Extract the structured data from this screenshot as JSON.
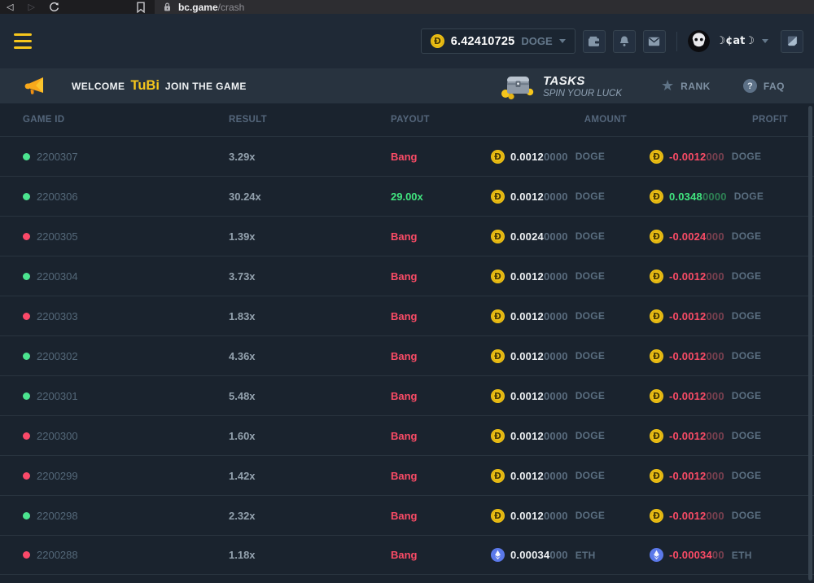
{
  "browser": {
    "url_site": "bc.game",
    "url_path": "/crash"
  },
  "header": {
    "balance": "6.42410725",
    "balance_currency": "DOGE",
    "username": "☽¢at☽"
  },
  "banner": {
    "welcome_prefix": "WELCOME",
    "welcome_name": "TuBi",
    "welcome_suffix": "JOIN THE GAME",
    "tasks_title": "TASKS",
    "tasks_subtitle": "SPIN YOUR LUCK",
    "rank_label": "RANK",
    "faq_label": "FAQ"
  },
  "icons": {
    "back_glyph": "◁",
    "forward_glyph": "▷",
    "star_glyph": "★",
    "question_glyph": "?"
  },
  "colors": {
    "accent_yellow": "#f6c61c",
    "win_green": "#41e57f",
    "loss_red": "#fb4b66",
    "doge_coin": "#eec115",
    "eth_coin": "#5b79ea",
    "green_dot": "#4be48f",
    "red_dot": "#fb4969"
  },
  "table": {
    "headers": {
      "game_id": "GAME ID",
      "result": "RESULT",
      "payout": "PAYOUT",
      "amount": "AMOUNT",
      "profit": "PROFIT"
    },
    "rows": [
      {
        "id": "2200307",
        "dot": "green",
        "result": "3.29x",
        "payout": "Bang",
        "payout_win": false,
        "coin": "doge",
        "amount_main": "0.0012",
        "amount_zeros": "0000",
        "amount_currency": "DOGE",
        "profit_main": "-0.0012",
        "profit_zeros": "000",
        "profit_currency": "DOGE",
        "profit_win": false
      },
      {
        "id": "2200306",
        "dot": "green",
        "result": "30.24x",
        "payout": "29.00x",
        "payout_win": true,
        "coin": "doge",
        "amount_main": "0.0012",
        "amount_zeros": "0000",
        "amount_currency": "DOGE",
        "profit_main": "0.0348",
        "profit_zeros": "0000",
        "profit_currency": "DOGE",
        "profit_win": true
      },
      {
        "id": "2200305",
        "dot": "red",
        "result": "1.39x",
        "payout": "Bang",
        "payout_win": false,
        "coin": "doge",
        "amount_main": "0.0024",
        "amount_zeros": "0000",
        "amount_currency": "DOGE",
        "profit_main": "-0.0024",
        "profit_zeros": "000",
        "profit_currency": "DOGE",
        "profit_win": false
      },
      {
        "id": "2200304",
        "dot": "green",
        "result": "3.73x",
        "payout": "Bang",
        "payout_win": false,
        "coin": "doge",
        "amount_main": "0.0012",
        "amount_zeros": "0000",
        "amount_currency": "DOGE",
        "profit_main": "-0.0012",
        "profit_zeros": "000",
        "profit_currency": "DOGE",
        "profit_win": false
      },
      {
        "id": "2200303",
        "dot": "red",
        "result": "1.83x",
        "payout": "Bang",
        "payout_win": false,
        "coin": "doge",
        "amount_main": "0.0012",
        "amount_zeros": "0000",
        "amount_currency": "DOGE",
        "profit_main": "-0.0012",
        "profit_zeros": "000",
        "profit_currency": "DOGE",
        "profit_win": false
      },
      {
        "id": "2200302",
        "dot": "green",
        "result": "4.36x",
        "payout": "Bang",
        "payout_win": false,
        "coin": "doge",
        "amount_main": "0.0012",
        "amount_zeros": "0000",
        "amount_currency": "DOGE",
        "profit_main": "-0.0012",
        "profit_zeros": "000",
        "profit_currency": "DOGE",
        "profit_win": false
      },
      {
        "id": "2200301",
        "dot": "green",
        "result": "5.48x",
        "payout": "Bang",
        "payout_win": false,
        "coin": "doge",
        "amount_main": "0.0012",
        "amount_zeros": "0000",
        "amount_currency": "DOGE",
        "profit_main": "-0.0012",
        "profit_zeros": "000",
        "profit_currency": "DOGE",
        "profit_win": false
      },
      {
        "id": "2200300",
        "dot": "red",
        "result": "1.60x",
        "payout": "Bang",
        "payout_win": false,
        "coin": "doge",
        "amount_main": "0.0012",
        "amount_zeros": "0000",
        "amount_currency": "DOGE",
        "profit_main": "-0.0012",
        "profit_zeros": "000",
        "profit_currency": "DOGE",
        "profit_win": false
      },
      {
        "id": "2200299",
        "dot": "red",
        "result": "1.42x",
        "payout": "Bang",
        "payout_win": false,
        "coin": "doge",
        "amount_main": "0.0012",
        "amount_zeros": "0000",
        "amount_currency": "DOGE",
        "profit_main": "-0.0012",
        "profit_zeros": "000",
        "profit_currency": "DOGE",
        "profit_win": false
      },
      {
        "id": "2200298",
        "dot": "green",
        "result": "2.32x",
        "payout": "Bang",
        "payout_win": false,
        "coin": "doge",
        "amount_main": "0.0012",
        "amount_zeros": "0000",
        "amount_currency": "DOGE",
        "profit_main": "-0.0012",
        "profit_zeros": "000",
        "profit_currency": "DOGE",
        "profit_win": false
      },
      {
        "id": "2200288",
        "dot": "red",
        "result": "1.18x",
        "payout": "Bang",
        "payout_win": false,
        "coin": "eth",
        "amount_main": "0.00034",
        "amount_zeros": "000",
        "amount_currency": "ETH",
        "profit_main": "-0.00034",
        "profit_zeros": "00",
        "profit_currency": "ETH",
        "profit_win": false
      }
    ]
  }
}
